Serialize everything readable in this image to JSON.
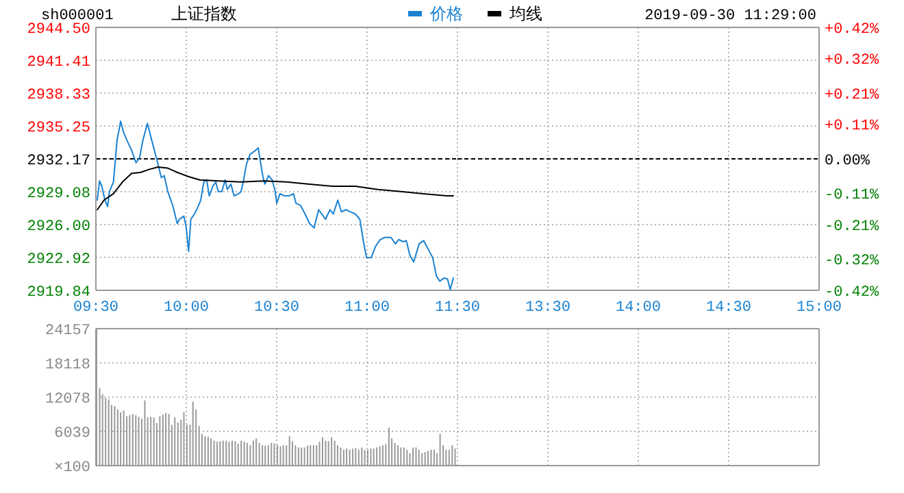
{
  "chart_data": [
    {
      "type": "line",
      "title": "上证指数",
      "subtitle": "sh000001",
      "annotations": [
        "2019-09-30 11:29:00"
      ],
      "legend": "top",
      "grid": true,
      "xlim": [
        9.5,
        11.5
      ],
      "xticks": [
        {
          "value": 9.5,
          "label": "09:30"
        },
        {
          "value": 10,
          "label": "10:00"
        },
        {
          "value": 10.5,
          "label": "10:30"
        },
        {
          "value": 11,
          "label": "11:00"
        },
        {
          "value": 11.5,
          "label": "11:30"
        }
      ],
      "ylim": [
        2919.84,
        2944.5
      ],
      "yticks": [
        {
          "value": 2919.84,
          "label": "2919.84"
        },
        {
          "value": 2922.92,
          "label": "2922.92"
        },
        {
          "value": 2926,
          "label": "2926.00"
        },
        {
          "value": 2929.08,
          "label": "2929.08"
        },
        {
          "value": 2932.17,
          "label": "2932.17"
        },
        {
          "value": 2935.25,
          "label": "2935.25"
        },
        {
          "value": 2938.33,
          "label": "2938.33"
        },
        {
          "value": 2941.41,
          "label": "2941.41"
        },
        {
          "value": 2944.5,
          "label": "2944.50"
        }
      ],
      "ref_lines": [
        {
          "axis": "y",
          "value": 2932.17,
          "color": "#000000",
          "line_style": "dashed"
        }
      ],
      "series": [
        {
          "name": "价格",
          "color": "#1a82d2",
          "x": [
            9.508,
            9.52,
            9.533,
            9.55,
            9.565,
            9.575,
            9.597,
            9.617,
            9.637,
            9.652,
            9.672,
            9.697,
            9.722,
            9.742,
            9.76,
            9.785,
            9.803,
            9.823,
            9.837,
            9.862,
            9.878,
            9.898,
            9.925,
            9.95,
            9.962,
            9.987,
            10,
            10.013,
            10.025,
            10.045,
            10.063,
            10.08,
            10.097,
            10.113,
            10.127,
            10.147,
            10.163,
            10.177,
            10.197,
            10.215,
            10.227,
            10.247,
            10.265,
            10.29,
            10.303,
            10.315,
            10.333,
            10.353,
            10.378,
            10.398,
            10.408,
            10.425,
            10.435,
            10.455,
            10.475,
            10.492,
            10.5,
            10.518,
            10.543,
            10.568,
            10.593,
            10.607,
            10.632,
            10.657,
            10.682,
            10.707,
            10.732,
            10.758,
            10.77,
            10.795,
            10.813,
            10.838,
            10.858,
            10.883,
            10.908,
            10.935,
            10.96,
            10.98,
            10.997,
            11.023,
            11.048,
            11.073,
            11.098,
            11.132,
            11.157,
            11.175,
            11.2,
            11.217,
            11.237,
            11.258,
            11.288,
            11.313,
            11.338,
            11.363,
            11.383,
            11.402,
            11.427,
            11.445,
            11.46,
            11.477
          ],
          "values": [
            2928.3,
            2930.1,
            2929.6,
            2928.3,
            2927.7,
            2929.1,
            2930.0,
            2933.9,
            2935.7,
            2934.7,
            2933.9,
            2933.0,
            2931.8,
            2932.3,
            2933.9,
            2935.5,
            2934.3,
            2933.0,
            2932.1,
            2930.4,
            2930.6,
            2929.1,
            2927.8,
            2926.1,
            2926.5,
            2926.8,
            2925.7,
            2923.5,
            2926.5,
            2927.0,
            2927.6,
            2928.3,
            2930.0,
            2930.2,
            2928.7,
            2929.6,
            2930.0,
            2929.1,
            2929.1,
            2930.2,
            2929.3,
            2929.8,
            2928.7,
            2928.9,
            2929.1,
            2930.0,
            2931.7,
            2932.6,
            2932.9,
            2933.2,
            2932.1,
            2930.4,
            2929.8,
            2930.6,
            2930.2,
            2929.1,
            2928.0,
            2928.9,
            2928.7,
            2928.7,
            2928.9,
            2928.0,
            2927.8,
            2927.0,
            2926.1,
            2925.7,
            2927.4,
            2926.8,
            2926.5,
            2927.4,
            2927.0,
            2928.3,
            2927.2,
            2927.4,
            2927.2,
            2927.0,
            2926.5,
            2924.4,
            2922.9,
            2922.9,
            2924.0,
            2924.6,
            2924.8,
            2924.8,
            2924.2,
            2924.6,
            2924.4,
            2924.5,
            2923.1,
            2922.5,
            2924.2,
            2924.5,
            2923.7,
            2922.9,
            2921.2,
            2920.7,
            2921.0,
            2920.9,
            2919.9,
            2921.0
          ]
        },
        {
          "name": "均线",
          "color": "#000000",
          "x": [
            9.508,
            9.545,
            9.597,
            9.647,
            9.697,
            9.747,
            9.798,
            9.843,
            9.898,
            9.95,
            10.013,
            10.075,
            10.177,
            10.303,
            10.43,
            10.555,
            10.682,
            10.808,
            10.935,
            11.06,
            11.187,
            11.313,
            11.44,
            11.477
          ],
          "values": [
            2927.4,
            2928.3,
            2928.9,
            2930.0,
            2930.8,
            2930.9,
            2931.2,
            2931.4,
            2931.3,
            2930.9,
            2930.5,
            2930.2,
            2930.1,
            2930.0,
            2930.1,
            2930.0,
            2929.8,
            2929.6,
            2929.6,
            2929.3,
            2929.1,
            2928.9,
            2928.7,
            2928.7
          ]
        }
      ]
    },
    {
      "type": "line",
      "grid": true,
      "tick_labels": "x",
      "xlim": [
        13,
        15
      ],
      "xticks": [
        {
          "value": 13.5,
          "label": "13:30"
        },
        {
          "value": 14,
          "label": "14:00"
        },
        {
          "value": 14.5,
          "label": "14:30"
        },
        {
          "value": 15,
          "label": "15:00"
        }
      ],
      "ylim": [
        2919.84,
        2944.5
      ],
      "yticks": [
        {
          "value": 2919.84,
          "label": null
        },
        {
          "value": 2922.92,
          "label": null
        },
        {
          "value": 2926,
          "label": null
        },
        {
          "value": 2929.08,
          "label": null
        },
        {
          "value": 2932.17,
          "label": null
        },
        {
          "value": 2935.25,
          "label": null
        },
        {
          "value": 2938.33,
          "label": null
        },
        {
          "value": 2941.41,
          "label": null
        },
        {
          "value": 2944.5,
          "label": null
        }
      ],
      "y2lim": [
        -0.42,
        0.42
      ],
      "y2ticks": [
        {
          "value": -0.42,
          "label": "-0.42%"
        },
        {
          "value": -0.32,
          "label": "-0.32%"
        },
        {
          "value": -0.21,
          "label": "-0.21%"
        },
        {
          "value": -0.11,
          "label": "-0.11%"
        },
        {
          "value": 0,
          "label": "0.00%"
        },
        {
          "value": 0.11,
          "label": "+0.11%"
        },
        {
          "value": 0.21,
          "label": "+0.21%"
        },
        {
          "value": 0.32,
          "label": "+0.32%"
        },
        {
          "value": 0.42,
          "label": "+0.42%"
        }
      ],
      "ref_lines": [
        {
          "axis": "y",
          "value": 2932.17,
          "color": "#000000",
          "line_style": "dashed"
        }
      ]
    },
    {
      "type": "bar",
      "color": "#999999",
      "grid": true,
      "tick_labels": "y",
      "ylabel": "×100",
      "xlim": [
        9.5,
        11.5
      ],
      "xticks": [
        {
          "value": 9.5,
          "label": null
        },
        {
          "value": 10,
          "label": null
        },
        {
          "value": 10.5,
          "label": null
        },
        {
          "value": 11,
          "label": null
        },
        {
          "value": 11.5,
          "label": null
        }
      ],
      "ylim": [
        0,
        24157
      ],
      "yticks": [
        {
          "value": 0,
          "label": null
        },
        6039,
        12078,
        18118,
        24157
      ],
      "x": [
        9.5,
        9.517,
        9.533,
        9.55,
        9.567,
        9.583,
        9.6,
        9.617,
        9.633,
        9.65,
        9.667,
        9.683,
        9.7,
        9.717,
        9.733,
        9.75,
        9.767,
        9.783,
        9.8,
        9.817,
        9.833,
        9.85,
        9.867,
        9.883,
        9.9,
        9.917,
        9.933,
        9.95,
        9.967,
        9.983,
        10,
        10.017,
        10.033,
        10.05,
        10.067,
        10.083,
        10.1,
        10.117,
        10.133,
        10.15,
        10.167,
        10.183,
        10.2,
        10.217,
        10.233,
        10.25,
        10.267,
        10.283,
        10.3,
        10.317,
        10.333,
        10.35,
        10.367,
        10.383,
        10.4,
        10.417,
        10.433,
        10.45,
        10.467,
        10.483,
        10.5,
        10.517,
        10.533,
        10.55,
        10.567,
        10.583,
        10.6,
        10.617,
        10.633,
        10.65,
        10.667,
        10.683,
        10.7,
        10.717,
        10.733,
        10.75,
        10.767,
        10.783,
        10.8,
        10.817,
        10.833,
        10.85,
        10.867,
        10.883,
        10.9,
        10.917,
        10.933,
        10.95,
        10.967,
        10.983,
        11,
        11.017,
        11.033,
        11.05,
        11.067,
        11.083,
        11.1,
        11.117,
        11.133,
        11.15,
        11.167,
        11.183,
        11.2,
        11.217,
        11.233,
        11.25,
        11.267,
        11.283,
        11.3,
        11.317,
        11.333,
        11.35,
        11.367,
        11.383,
        11.4,
        11.417,
        11.433,
        11.45,
        11.467,
        11.483
      ],
      "values": [
        24100,
        13700,
        12600,
        11900,
        11700,
        10700,
        10500,
        9900,
        9400,
        9700,
        8700,
        8900,
        9100,
        8900,
        8600,
        8300,
        11500,
        8500,
        8600,
        8500,
        7500,
        8700,
        9000,
        9300,
        9100,
        7200,
        8500,
        7600,
        8100,
        9400,
        7200,
        7200,
        11300,
        9900,
        7000,
        5600,
        5200,
        5100,
        4800,
        4400,
        4200,
        4300,
        4400,
        4400,
        4200,
        4400,
        4300,
        3900,
        4400,
        4200,
        4000,
        3600,
        4400,
        4800,
        4000,
        3600,
        3500,
        3600,
        4000,
        3900,
        3600,
        3400,
        3600,
        3600,
        5200,
        4300,
        3600,
        3200,
        3200,
        3200,
        3500,
        3600,
        3600,
        3600,
        4200,
        5000,
        4400,
        4300,
        5000,
        4400,
        3600,
        3200,
        2800,
        3000,
        2800,
        3000,
        3100,
        2800,
        3200,
        2800,
        2800,
        3000,
        3000,
        3200,
        3400,
        3600,
        3800,
        6700,
        4800,
        4000,
        3600,
        3200,
        3200,
        2800,
        2200,
        3200,
        3200,
        2800,
        2200,
        2400,
        2600,
        2800,
        2800,
        2200,
        5600,
        3600,
        2800,
        2800,
        3600,
        3000
      ]
    },
    {
      "type": "bar",
      "grid": true,
      "tick_labels": false,
      "xlim": [
        13,
        15
      ],
      "xticks": [
        {
          "value": 13.5,
          "label": null
        },
        {
          "value": 14,
          "label": null
        },
        {
          "value": 14.5,
          "label": null
        },
        {
          "value": 15,
          "label": null
        }
      ],
      "ylim": [
        0,
        24157
      ],
      "yticks": [
        {
          "value": 0,
          "label": null
        },
        6039,
        12078,
        18118,
        24157
      ]
    }
  ]
}
